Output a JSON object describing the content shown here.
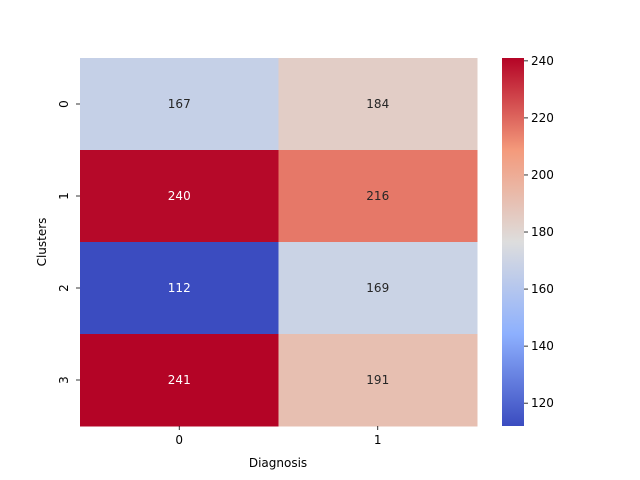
{
  "chart_data": {
    "type": "heatmap",
    "title": "",
    "xlabel": "Diagnosis",
    "ylabel": "Clusters",
    "x_categories": [
      "0",
      "1"
    ],
    "y_categories": [
      "0",
      "1",
      "2",
      "3"
    ],
    "values": [
      [
        167,
        184
      ],
      [
        240,
        216
      ],
      [
        112,
        169
      ],
      [
        241,
        191
      ]
    ],
    "colormap": "coolwarm",
    "vmin": 112,
    "vmax": 241,
    "colorbar_ticks": [
      120,
      140,
      160,
      180,
      200,
      220,
      240
    ],
    "colorbar_tick_labels": [
      "120",
      "140",
      "160",
      "180",
      "200",
      "220",
      "240"
    ],
    "annotations": true
  }
}
